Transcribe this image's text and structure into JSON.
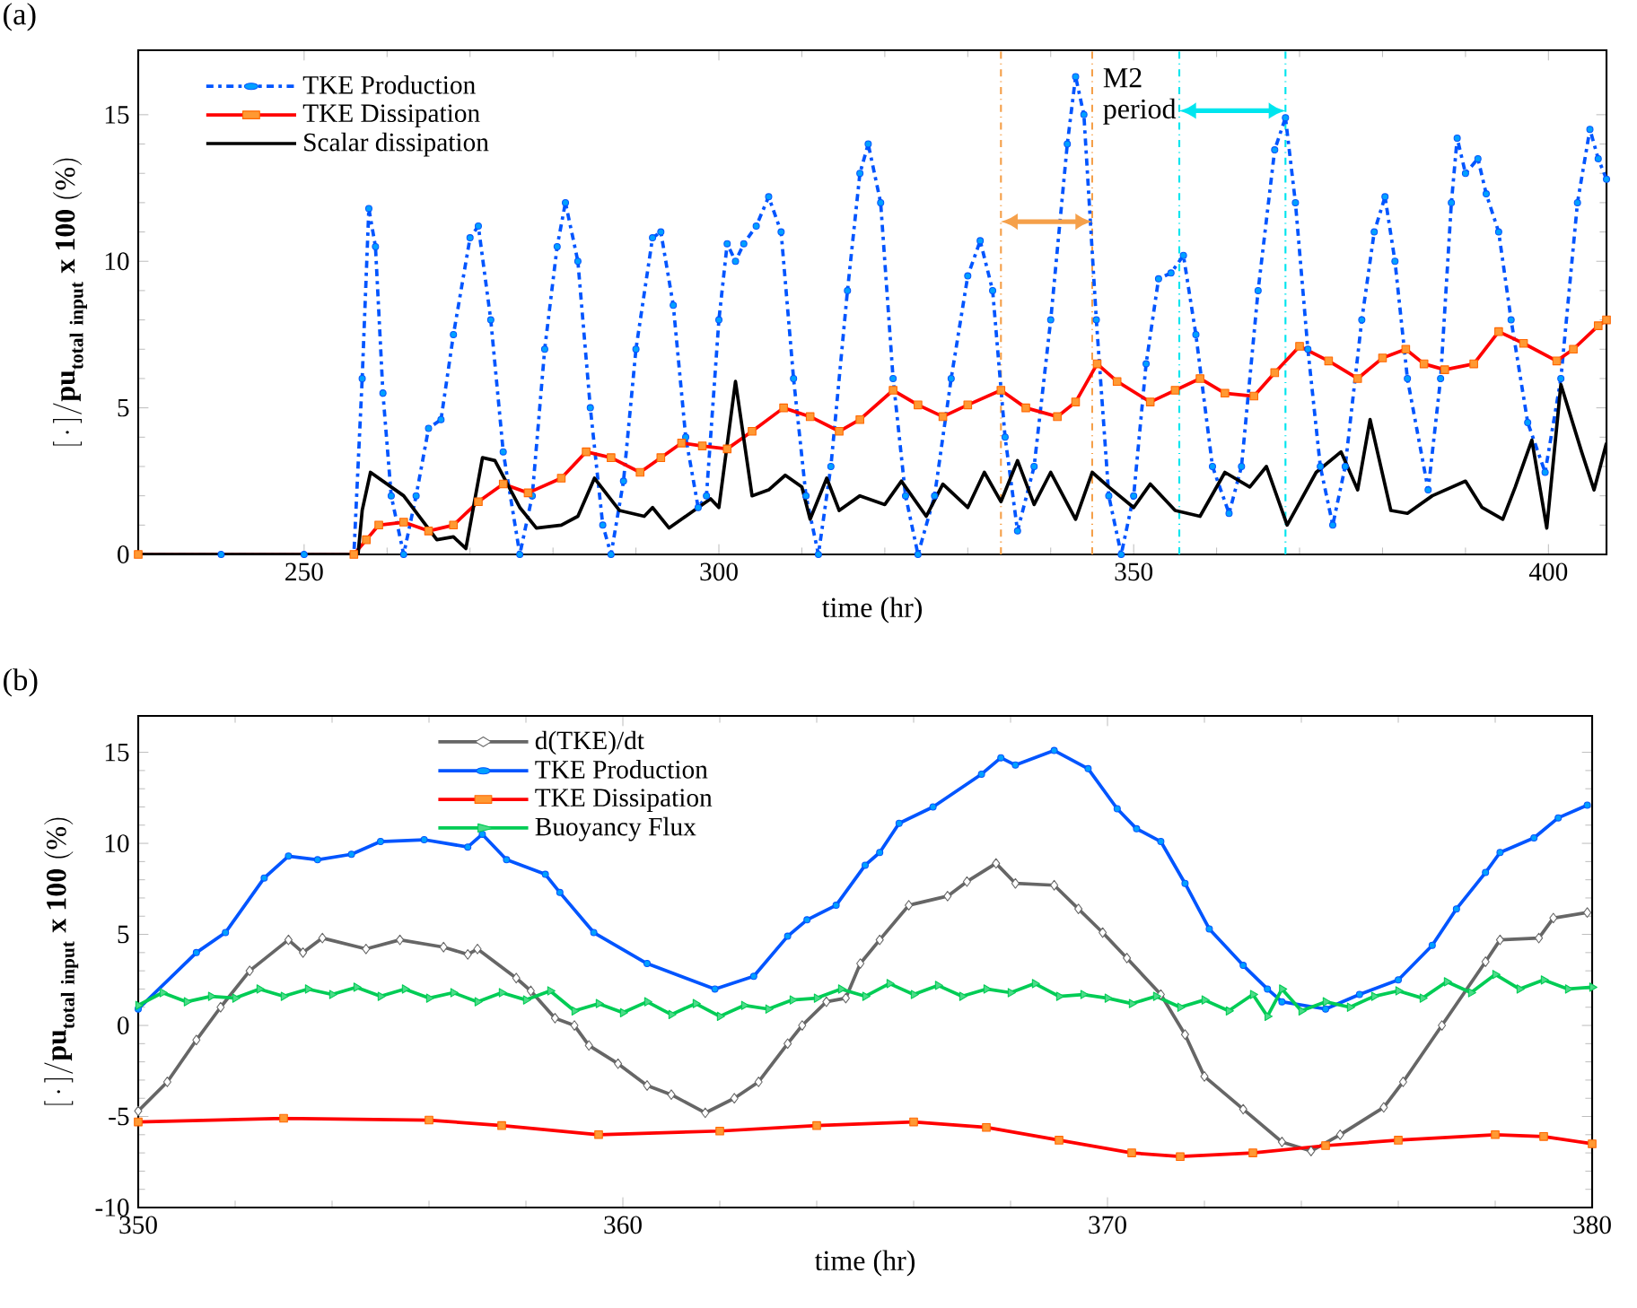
{
  "chart_data": [
    {
      "type": "line",
      "title": "(a)",
      "xlabel": "time (hr)",
      "ylabel": "\\mathbf{[\\,\\cdot\\,]/pu}_{\\mathbf{total\\ input}}\\ \\mathbf{x\\ 100\\ (\\%)}",
      "xlim": [
        230,
        407
      ],
      "xticks": [
        250,
        300,
        350,
        400
      ],
      "ylim": [
        0,
        17.2
      ],
      "yticks": [
        0,
        5,
        10,
        15
      ],
      "legend": "top left",
      "annotations": [
        "M2 period"
      ],
      "ref_lines": [
        {
          "axis": "x",
          "value": 334,
          "color": "#f5a04a",
          "line_style": "dashdot"
        },
        {
          "axis": "x",
          "value": 345,
          "color": "#f5a04a",
          "line_style": "dashdot"
        },
        {
          "axis": "x",
          "value": 355.5,
          "color": "#00e5ee",
          "line_style": "dashdot"
        },
        {
          "axis": "x",
          "value": 368.3,
          "color": "#00e5ee",
          "line_style": "dashdot"
        }
      ],
      "series": [
        {
          "name": "TKE Production",
          "color": "#0055ff",
          "marker": "circle",
          "line_style": "dashdot",
          "x": [
            230,
            240,
            250,
            256,
            257,
            257.8,
            258.6,
            259.5,
            260.5,
            262,
            263.5,
            265,
            266.5,
            268,
            270,
            271,
            272.5,
            274,
            276,
            277.5,
            279,
            280.5,
            281.5,
            283,
            284.5,
            286,
            287,
            288.5,
            290,
            292,
            293,
            294.5,
            296,
            297.5,
            298.5,
            300,
            301,
            302,
            303,
            304.5,
            306,
            307.5,
            309,
            310.5,
            312,
            313.5,
            315.5,
            317,
            318,
            319.5,
            321,
            322.5,
            324,
            326,
            328,
            330,
            331.5,
            333,
            334.5,
            336,
            338,
            340,
            342,
            343,
            344,
            345.5,
            347,
            348.5,
            350,
            351.5,
            353,
            354.5,
            356,
            357.5,
            359.5,
            361.5,
            363,
            365,
            367,
            368.3,
            369.5,
            371,
            372.5,
            374,
            375.5,
            377.5,
            379,
            380.3,
            381.5,
            383,
            385.5,
            387,
            388.3,
            389,
            390,
            391.5,
            392.5,
            394,
            395.5,
            397.5,
            399.6,
            401.5,
            403.5,
            405,
            406,
            407
          ],
          "values": [
            0,
            0,
            0,
            0,
            6,
            11.8,
            10.5,
            5.5,
            2.0,
            0,
            2.0,
            4.3,
            4.6,
            7.5,
            10.8,
            11.2,
            8.0,
            3.5,
            0,
            2.0,
            7.0,
            10.5,
            12.0,
            10.0,
            5.0,
            1.0,
            0,
            2.5,
            7.0,
            10.8,
            11.0,
            8.5,
            4.0,
            1.6,
            2.0,
            8.0,
            10.6,
            10.0,
            10.6,
            11.2,
            12.2,
            11.0,
            6.0,
            2.0,
            0,
            3.0,
            9.0,
            13.0,
            14.0,
            12.0,
            6.0,
            2.0,
            0,
            2.0,
            6.0,
            9.5,
            10.7,
            9.0,
            4.0,
            0.8,
            3.0,
            8.0,
            14.0,
            16.3,
            15.0,
            8.0,
            2.0,
            0,
            2.0,
            6.5,
            9.4,
            9.6,
            10.2,
            7.5,
            3.0,
            1.4,
            3.0,
            9.0,
            13.8,
            14.9,
            12.0,
            7.0,
            3.0,
            1.0,
            3.0,
            8.0,
            11.0,
            12.2,
            10.0,
            6.0,
            2.2,
            6.0,
            12.0,
            14.2,
            13.0,
            13.5,
            12.3,
            11.0,
            8.0,
            4.5,
            2.8,
            6.0,
            12.0,
            14.5,
            13.5,
            12.8
          ]
        },
        {
          "name": "TKE Dissipation",
          "color": "#ff0000",
          "marker": "square",
          "line_style": "solid",
          "x": [
            230,
            256,
            257.5,
            259,
            262,
            265,
            268,
            271,
            274,
            277,
            281,
            284,
            287,
            290.5,
            293,
            295.5,
            298,
            301,
            304,
            307.8,
            311,
            314.5,
            317,
            321,
            324,
            327,
            330,
            334,
            337,
            340.8,
            343,
            345.6,
            348,
            352,
            355,
            358,
            361,
            364.5,
            367,
            370,
            373.5,
            377,
            380,
            382.8,
            385,
            387.5,
            391,
            394,
            397,
            401,
            403,
            406,
            407
          ],
          "values": [
            0,
            0,
            0.5,
            1.0,
            1.1,
            0.8,
            1.0,
            1.8,
            2.4,
            2.1,
            2.6,
            3.5,
            3.3,
            2.8,
            3.3,
            3.8,
            3.7,
            3.6,
            4.2,
            5.0,
            4.7,
            4.2,
            4.6,
            5.6,
            5.1,
            4.7,
            5.1,
            5.6,
            5.0,
            4.7,
            5.2,
            6.5,
            5.9,
            5.2,
            5.6,
            6.0,
            5.5,
            5.4,
            6.2,
            7.1,
            6.6,
            6.0,
            6.7,
            7.0,
            6.5,
            6.3,
            6.5,
            7.6,
            7.2,
            6.6,
            7.0,
            7.8,
            8.0
          ]
        },
        {
          "name": "Scalar dissipation",
          "color": "#000000",
          "marker": "none",
          "line_style": "solid",
          "x": [
            230,
            256.5,
            257,
            258,
            262,
            266,
            268,
            269.5,
            271.5,
            273,
            276,
            278,
            281,
            283,
            285,
            288,
            291,
            292,
            294,
            297,
            299,
            300,
            302,
            304,
            306,
            308,
            310,
            311,
            313,
            314.5,
            317,
            320,
            322,
            325,
            327,
            330,
            332,
            334,
            336,
            338,
            340,
            343,
            345,
            347,
            350,
            352,
            355,
            358,
            361,
            364,
            366,
            368.5,
            372,
            375,
            377,
            378.5,
            381,
            383,
            386,
            390,
            392,
            394.5,
            396,
            398,
            399.8,
            401.5,
            404,
            405.5,
            407
          ],
          "values": [
            0,
            0,
            1.5,
            2.8,
            2.0,
            0.5,
            0.6,
            0.2,
            3.3,
            3.2,
            1.6,
            0.9,
            1.0,
            1.3,
            2.6,
            1.5,
            1.3,
            1.6,
            0.9,
            1.5,
            1.9,
            1.6,
            5.9,
            2.0,
            2.2,
            2.7,
            2.3,
            1.2,
            2.6,
            1.5,
            2.0,
            1.7,
            2.5,
            1.3,
            2.4,
            1.6,
            2.8,
            1.8,
            3.2,
            1.7,
            2.8,
            1.2,
            2.8,
            2.3,
            1.6,
            2.4,
            1.5,
            1.3,
            2.8,
            2.3,
            3.0,
            1.0,
            2.8,
            3.5,
            2.2,
            4.6,
            1.5,
            1.4,
            2.0,
            2.5,
            1.6,
            1.2,
            2.3,
            3.9,
            0.9,
            5.8,
            3.5,
            2.2,
            3.8
          ]
        }
      ]
    },
    {
      "type": "line",
      "title": "(b)",
      "xlabel": "time (hr)",
      "ylabel": "\\mathbf{[\\,\\cdot\\,]/pu}_{\\mathbf{total\\ input}}\\ \\mathbf{x\\ 100\\ (\\%)}",
      "xlim": [
        350,
        380
      ],
      "xticks": [
        350,
        360,
        370,
        380
      ],
      "ylim": [
        -10,
        17
      ],
      "yticks": [
        -10,
        -5,
        0,
        5,
        10,
        15
      ],
      "legend": "top",
      "series": [
        {
          "name": "d(TKE)/dt",
          "color": "#666666",
          "marker": "diamond",
          "line_style": "solid",
          "x": [
            350,
            350.6,
            351.2,
            351.7,
            352.3,
            353.1,
            353.4,
            353.8,
            354.7,
            355.4,
            356.3,
            356.8,
            357.0,
            357.8,
            358.1,
            358.6,
            359.0,
            359.3,
            359.9,
            360.5,
            361.0,
            361.7,
            362.3,
            362.8,
            363.4,
            363.7,
            364.2,
            364.6,
            364.9,
            365.3,
            365.9,
            366.7,
            367.1,
            367.7,
            368.1,
            368.9,
            369.4,
            369.9,
            370.4,
            371.1,
            371.6,
            372.0,
            372.8,
            373.6,
            374.2,
            374.8,
            375.7,
            376.1,
            376.9,
            377.8,
            378.1,
            378.9,
            379.2,
            379.9
          ],
          "values": [
            -4.7,
            -3.1,
            -0.8,
            1.0,
            3.0,
            4.7,
            4.0,
            4.8,
            4.2,
            4.7,
            4.3,
            3.9,
            4.2,
            2.6,
            1.9,
            0.4,
            0.0,
            -1.1,
            -2.1,
            -3.3,
            -3.8,
            -4.8,
            -4.0,
            -3.1,
            -1.0,
            0.0,
            1.3,
            1.5,
            3.4,
            4.7,
            6.6,
            7.1,
            7.9,
            8.9,
            7.8,
            7.7,
            6.4,
            5.1,
            3.7,
            1.7,
            -0.5,
            -2.8,
            -4.6,
            -6.4,
            -6.9,
            -6.0,
            -4.5,
            -3.1,
            0.0,
            3.5,
            4.7,
            4.8,
            5.9,
            6.2
          ]
        },
        {
          "name": "TKE Production",
          "color": "#0055ff",
          "marker": "circle",
          "line_style": "solid",
          "x": [
            350,
            351.2,
            351.8,
            352.6,
            353.1,
            353.7,
            354.4,
            355.0,
            355.9,
            356.8,
            357.1,
            357.6,
            358.4,
            358.7,
            359.4,
            360.5,
            361.9,
            362.7,
            363.4,
            363.8,
            364.4,
            365.0,
            365.3,
            365.7,
            366.4,
            367.4,
            367.8,
            368.1,
            368.9,
            369.6,
            370.2,
            370.6,
            371.1,
            371.6,
            372.1,
            372.8,
            373.3,
            373.6,
            374.5,
            375.2,
            376.0,
            376.7,
            377.2,
            377.8,
            378.1,
            378.8,
            379.3,
            379.9
          ],
          "values": [
            0.9,
            4.0,
            5.1,
            8.1,
            9.3,
            9.1,
            9.4,
            10.1,
            10.2,
            9.8,
            10.5,
            9.1,
            8.3,
            7.3,
            5.1,
            3.4,
            2.0,
            2.7,
            4.9,
            5.8,
            6.6,
            8.8,
            9.5,
            11.1,
            12.0,
            13.8,
            14.7,
            14.3,
            15.1,
            14.1,
            11.9,
            10.8,
            10.1,
            7.8,
            5.3,
            3.3,
            2.0,
            1.3,
            0.9,
            1.7,
            2.5,
            4.4,
            6.4,
            8.4,
            9.5,
            10.3,
            11.4,
            12.1
          ]
        },
        {
          "name": "TKE Dissipation",
          "color": "#ff0000",
          "marker": "square",
          "line_style": "solid",
          "x": [
            350,
            353,
            356,
            357.5,
            359.5,
            362,
            364,
            366,
            367.5,
            369,
            370.5,
            371.5,
            373,
            374.5,
            376,
            378,
            379,
            380
          ],
          "values": [
            -5.3,
            -5.1,
            -5.2,
            -5.5,
            -6.0,
            -5.8,
            -5.5,
            -5.3,
            -5.6,
            -6.3,
            -7.0,
            -7.2,
            -7.0,
            -6.6,
            -6.3,
            -6.0,
            -6.1,
            -6.5
          ]
        },
        {
          "name": "Buoyancy Flux",
          "color": "#00cc55",
          "marker": "triangle",
          "line_style": "solid",
          "x": [
            350,
            350.5,
            351,
            351.5,
            352,
            352.5,
            353,
            353.5,
            354,
            354.5,
            355,
            355.5,
            356,
            356.5,
            357,
            357.5,
            358,
            358.5,
            359,
            359.5,
            360,
            360.5,
            361,
            361.5,
            362,
            362.5,
            363,
            363.5,
            364,
            364.5,
            365,
            365.5,
            366,
            366.5,
            367,
            367.5,
            368,
            368.5,
            369,
            369.5,
            370,
            370.5,
            371,
            371.5,
            372,
            372.5,
            373,
            373.3,
            373.6,
            374,
            374.5,
            375,
            375.5,
            376,
            376.5,
            377,
            377.5,
            378,
            378.5,
            379,
            379.5,
            380
          ],
          "values": [
            1.1,
            1.8,
            1.3,
            1.6,
            1.5,
            2.0,
            1.6,
            2.0,
            1.7,
            2.1,
            1.6,
            2.0,
            1.5,
            1.8,
            1.3,
            1.8,
            1.4,
            1.9,
            0.8,
            1.2,
            0.7,
            1.3,
            0.6,
            1.2,
            0.5,
            1.1,
            0.9,
            1.4,
            1.5,
            2.0,
            1.6,
            2.3,
            1.7,
            2.2,
            1.6,
            2.0,
            1.8,
            2.3,
            1.6,
            1.7,
            1.5,
            1.2,
            1.6,
            1.0,
            1.4,
            0.8,
            1.7,
            0.5,
            2.0,
            0.8,
            1.3,
            1.0,
            1.6,
            1.9,
            1.5,
            2.4,
            1.8,
            2.8,
            2.0,
            2.5,
            2.0,
            2.1
          ]
        }
      ]
    }
  ]
}
